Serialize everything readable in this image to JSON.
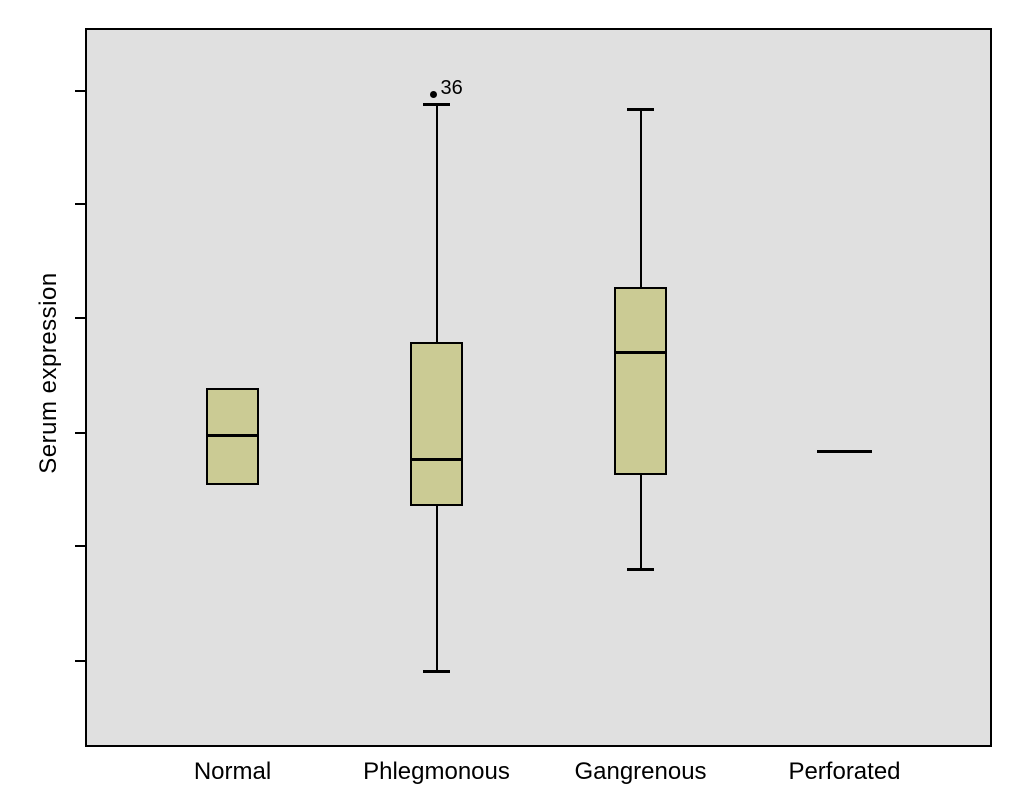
{
  "figure": {
    "background": "#ffffff"
  },
  "chart_data": {
    "type": "boxplot",
    "title": "",
    "ylabel": "Serum expression",
    "xlabel": "",
    "categories": [
      "Normal",
      "Phlegmonous",
      "Gangrenous",
      "Perforated"
    ],
    "y_axis": {
      "range": [
        0,
        100
      ],
      "tick_values": [
        11.7,
        27.8,
        43.7,
        59.7,
        75.7,
        91.5
      ],
      "tick_labels_visible": false,
      "note": "y-axis shows tick marks only, no numeric labels; values below are relative units estimated from pixel positions"
    },
    "series": [
      {
        "category": "Normal",
        "whisker_low": null,
        "q1": 36.3,
        "median": 43.3,
        "q3": 49.9,
        "whisker_high": null,
        "outliers": []
      },
      {
        "category": "Phlegmonous",
        "whisker_low": 10.4,
        "q1": 33.4,
        "median": 39.9,
        "q3": 56.3,
        "whisker_high": 89.7,
        "outliers": [
          {
            "value": 91.0,
            "label": "36"
          }
        ]
      },
      {
        "category": "Gangrenous",
        "whisker_low": 24.6,
        "q1": 37.8,
        "median": 54.9,
        "q3": 64.1,
        "whisker_high": 88.9,
        "outliers": []
      },
      {
        "category": "Perforated",
        "whisker_low": null,
        "q1": null,
        "median": 41.0,
        "q3": null,
        "whisker_high": null,
        "outliers": []
      }
    ],
    "colors": {
      "box_fill": "#cbcb94",
      "box_border": "#000000",
      "median": "#000000",
      "whisker": "#000000",
      "outlier": "#000000",
      "plot_background": "#e0e0e0",
      "frame": "#000000",
      "text": "#000000"
    },
    "legend": "none",
    "grid": false
  }
}
